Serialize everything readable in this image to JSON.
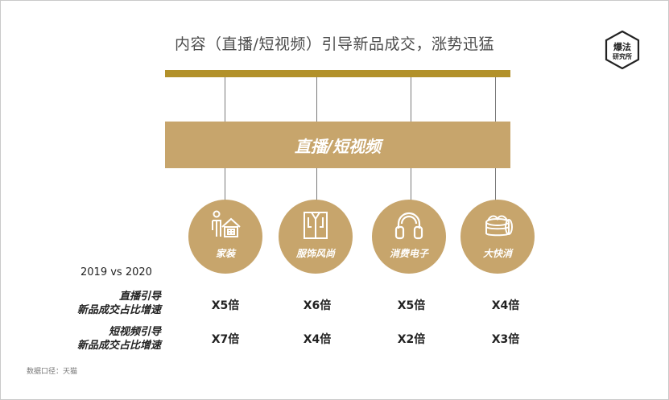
{
  "title": "内容（直播/短视频）引导新品成交，涨势迅猛",
  "logo": {
    "line1": "爆法",
    "line2": "研究所"
  },
  "main_label": "直播/短视频",
  "categories": [
    {
      "label": "家装",
      "icon": "home-decor-icon"
    },
    {
      "label": "服饰风尚",
      "icon": "shirt-icon"
    },
    {
      "label": "消费电子",
      "icon": "headphones-icon"
    },
    {
      "label": "大快消",
      "icon": "cosmetic-jar-icon"
    }
  ],
  "comparison_label": "2019 vs 2020",
  "rows": [
    {
      "label_line1": "直播引导",
      "label_line2": "新品成交占比增速",
      "values": [
        "X5倍",
        "X6倍",
        "X5倍",
        "X4倍"
      ]
    },
    {
      "label_line1": "短视频引导",
      "label_line2": "新品成交占比增速",
      "values": [
        "X7倍",
        "X4倍",
        "X2倍",
        "X3倍"
      ]
    }
  ],
  "source": "数据口径：天猫",
  "colors": {
    "accent_bar": "#b2912a",
    "box": "#c7a56c",
    "line": "#7a7a7a"
  }
}
